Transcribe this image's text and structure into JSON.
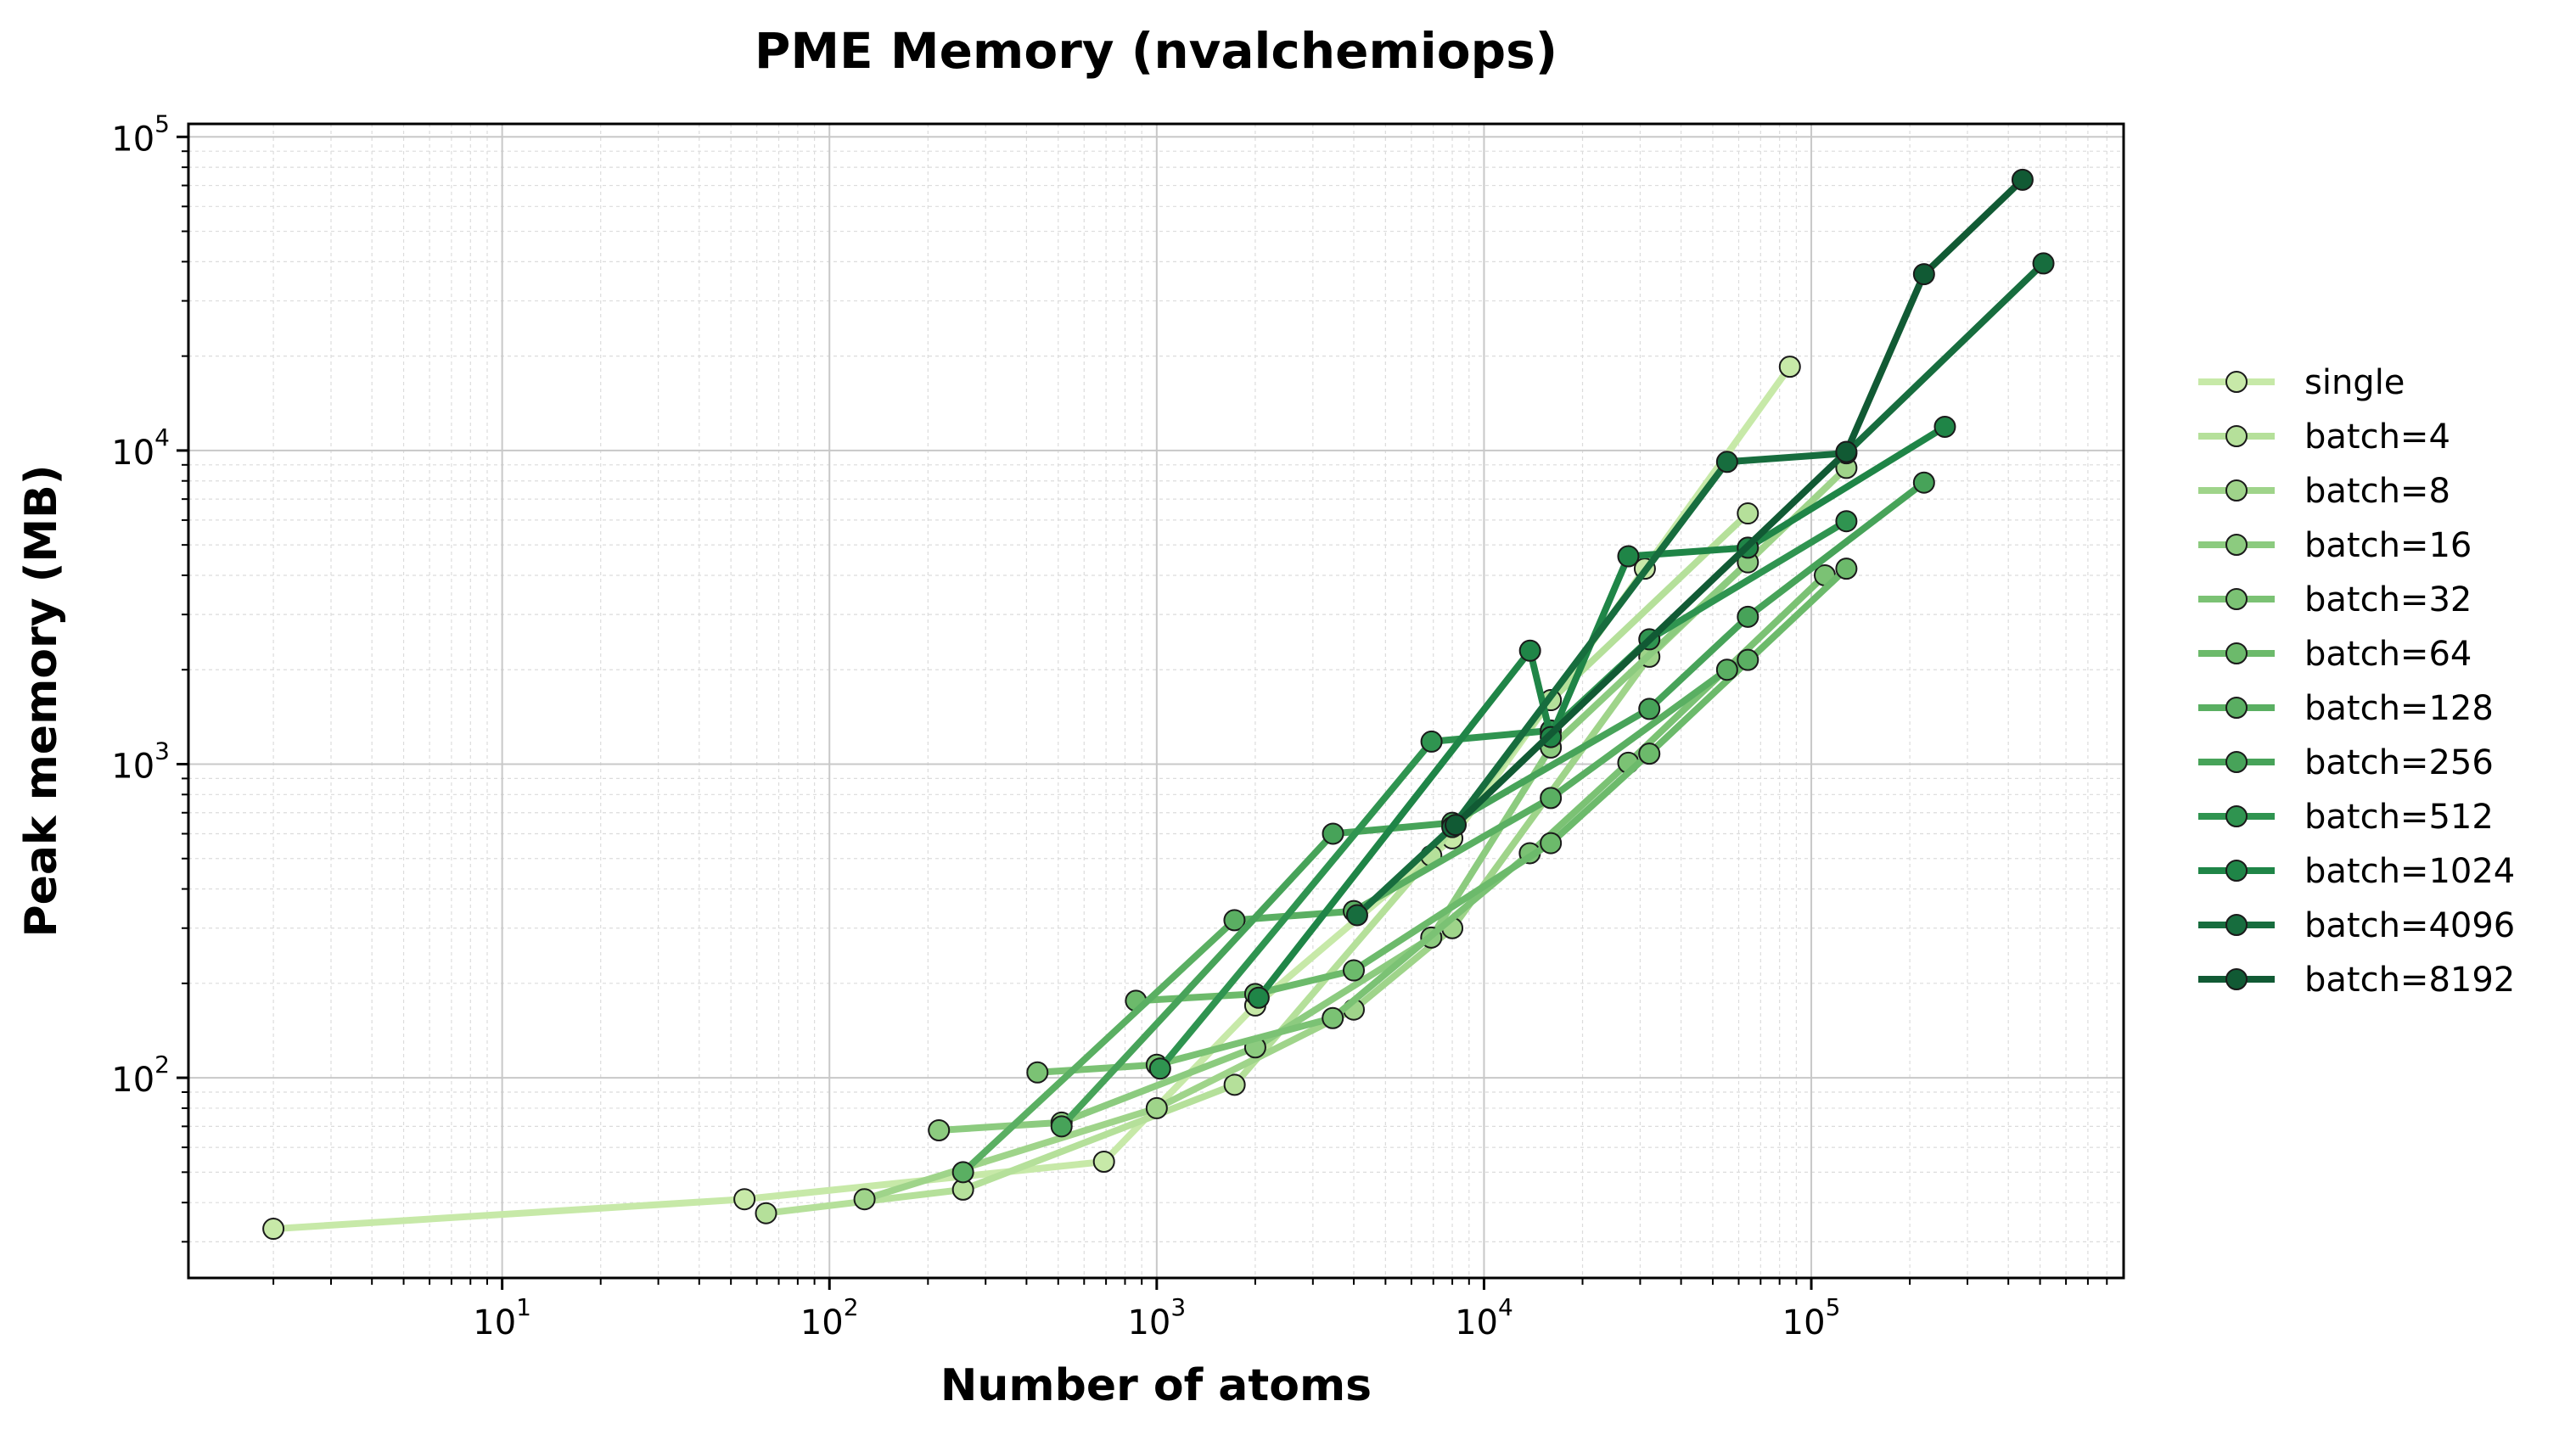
{
  "chart_data": {
    "type": "line",
    "title": "PME Memory (nvalchemiops)",
    "xlabel": "Number of atoms",
    "ylabel": "Peak memory (MB)",
    "xscale": "log",
    "yscale": "log",
    "xlim": [
      1.1,
      900000
    ],
    "ylim": [
      23,
      110000
    ],
    "grid": true,
    "legend_position": "outside-right",
    "x_ticks": [
      {
        "base": "10",
        "exp": "1",
        "value": 10
      },
      {
        "base": "10",
        "exp": "2",
        "value": 100
      },
      {
        "base": "10",
        "exp": "3",
        "value": 1000
      },
      {
        "base": "10",
        "exp": "4",
        "value": 10000
      },
      {
        "base": "10",
        "exp": "5",
        "value": 100000
      }
    ],
    "y_ticks": [
      {
        "base": "10",
        "exp": "2",
        "value": 100
      },
      {
        "base": "10",
        "exp": "3",
        "value": 1000
      },
      {
        "base": "10",
        "exp": "4",
        "value": 10000
      },
      {
        "base": "10",
        "exp": "5",
        "value": 100000
      }
    ],
    "series": [
      {
        "name": "single",
        "color": "#c7e9a8",
        "x": [
          2,
          55,
          690,
          2000,
          8000,
          31000,
          86000
        ],
        "y": [
          33,
          41,
          54,
          170,
          580,
          4200,
          18500
        ]
      },
      {
        "name": "batch=4",
        "color": "#b5e09a",
        "x": [
          64,
          256,
          1730,
          6900,
          16000,
          64000
        ],
        "y": [
          37,
          44,
          95,
          510,
          1600,
          6300
        ]
      },
      {
        "name": "batch=8",
        "color": "#9fd48a",
        "x": [
          128,
          1000,
          4000,
          8000,
          32000,
          128000
        ],
        "y": [
          41,
          80,
          165,
          300,
          2200,
          8800
        ]
      },
      {
        "name": "batch=16",
        "color": "#8ccb7f",
        "x": [
          216,
          512,
          2000,
          6900,
          16000,
          64000
        ],
        "y": [
          68,
          72,
          125,
          280,
          1130,
          4400
        ]
      },
      {
        "name": "batch=32",
        "color": "#7bc274",
        "x": [
          432,
          1000,
          3450,
          13800,
          27600,
          110000
        ],
        "y": [
          104,
          110,
          155,
          520,
          1010,
          4000
        ]
      },
      {
        "name": "batch=64",
        "color": "#6cba6b",
        "x": [
          864,
          2000,
          4000,
          16000,
          32000,
          128000
        ],
        "y": [
          176,
          185,
          220,
          560,
          1080,
          4200
        ]
      },
      {
        "name": "batch=128",
        "color": "#5aaf62",
        "x": [
          256,
          1728,
          4000,
          16000,
          55300,
          64000
        ],
        "y": [
          50,
          318,
          340,
          780,
          2000,
          2150
        ]
      },
      {
        "name": "batch=256",
        "color": "#47a359",
        "x": [
          512,
          3456,
          8000,
          32000,
          64000,
          221000
        ],
        "y": [
          70,
          600,
          650,
          1500,
          2950,
          7900
        ]
      },
      {
        "name": "batch=512",
        "color": "#2f9450",
        "x": [
          1024,
          6912,
          16000,
          32000,
          128000
        ],
        "y": [
          107,
          1180,
          1280,
          2500,
          5950
        ]
      },
      {
        "name": "batch=1024",
        "color": "#1f8547",
        "x": [
          2048,
          13824,
          16000,
          27600,
          64000,
          256000
        ],
        "y": [
          180,
          2300,
          1220,
          4600,
          4900,
          11900
        ]
      },
      {
        "name": "batch=4096",
        "color": "#176d3e",
        "x": [
          4096,
          8000,
          55300,
          128000,
          512000
        ],
        "y": [
          330,
          630,
          9200,
          9800,
          39500
        ]
      },
      {
        "name": "batch=8192",
        "color": "#115a34",
        "x": [
          8192,
          128000,
          221000,
          442000
        ],
        "y": [
          640,
          9900,
          36500,
          73000
        ]
      }
    ]
  }
}
